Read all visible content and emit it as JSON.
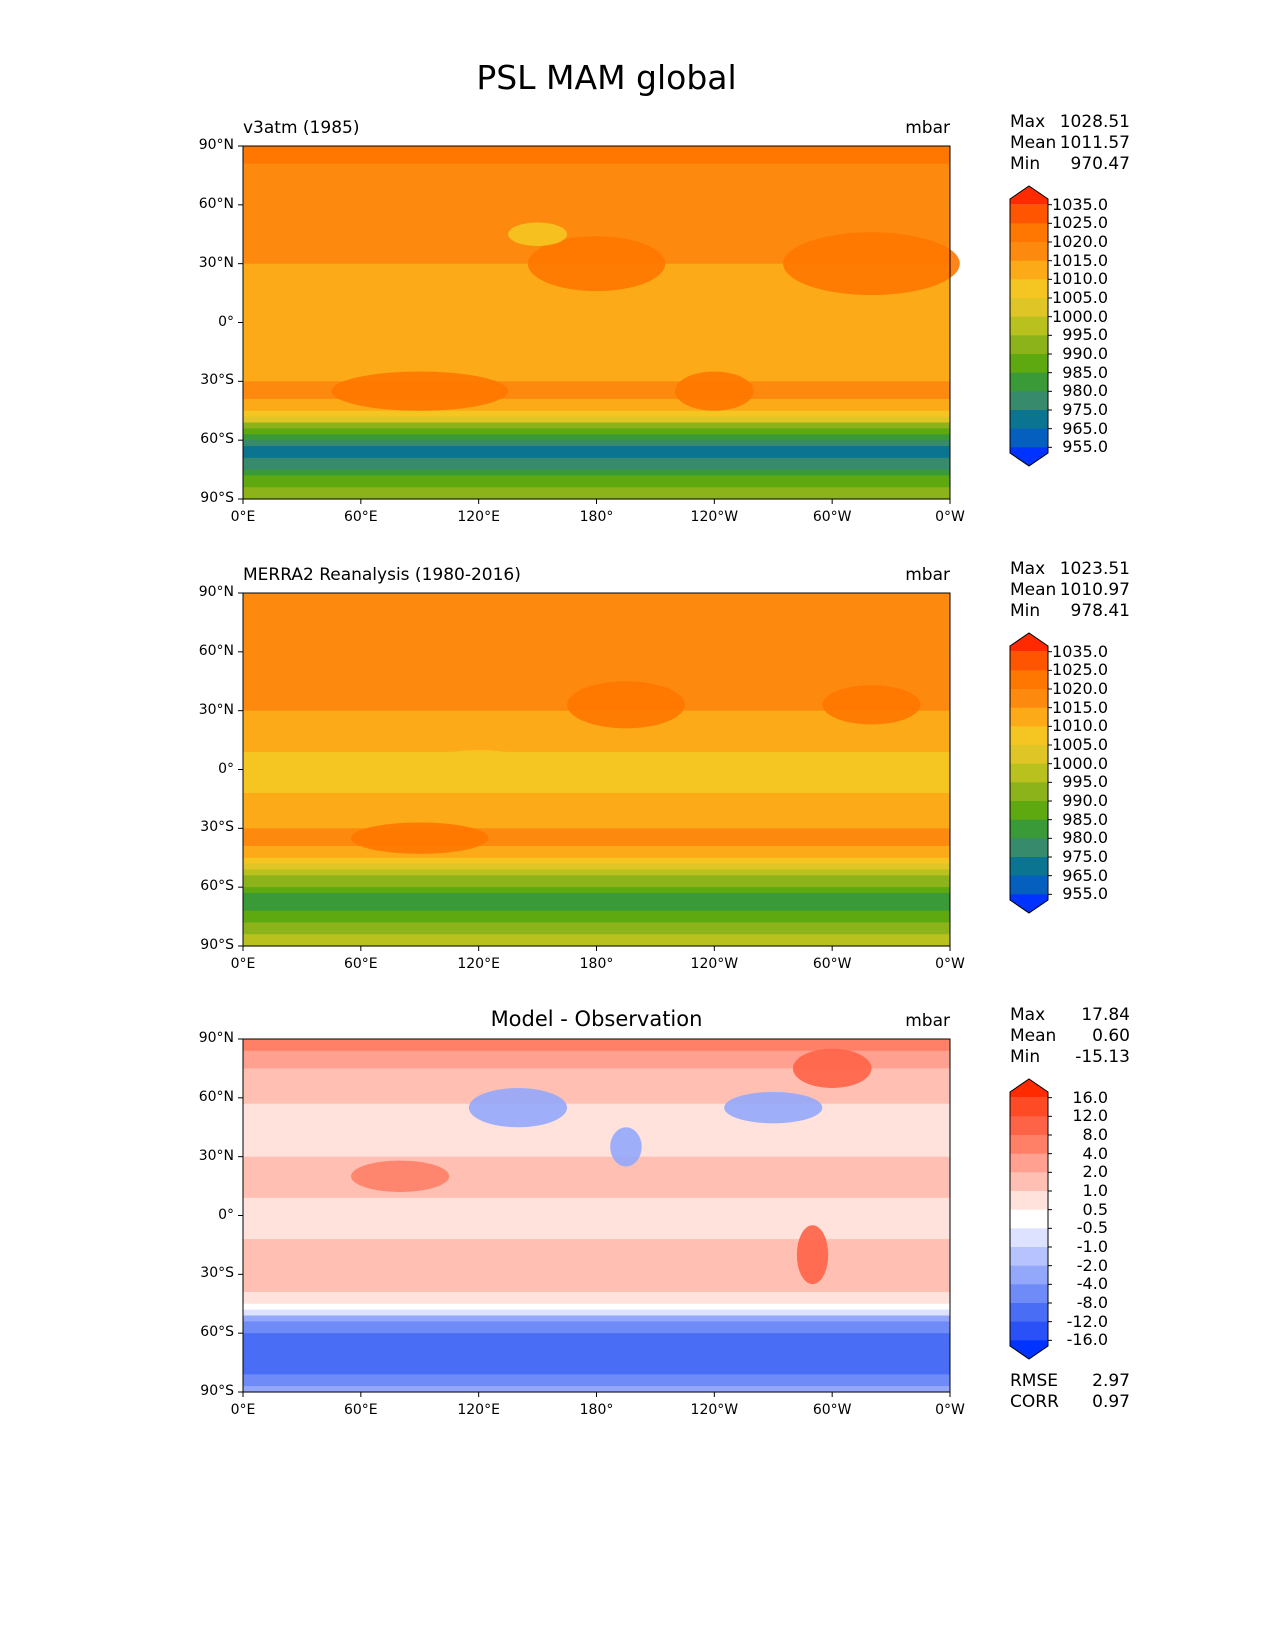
{
  "chart_data": {
    "type": "heatmap",
    "title": "PSL MAM global",
    "xticks": [
      "0°E",
      "60°E",
      "120°E",
      "180°",
      "120°W",
      "60°W",
      "0°W"
    ],
    "yticks": [
      "90°N",
      "60°N",
      "30°N",
      "0°",
      "30°S",
      "60°S",
      "90°S"
    ],
    "panels": [
      {
        "left_title": "v3atm (1985)",
        "center_title": "",
        "units": "mbar",
        "stats": [
          {
            "label": "Max",
            "value": "1028.51"
          },
          {
            "label": "Mean",
            "value": "1011.57"
          },
          {
            "label": "Min",
            "value": "970.47"
          }
        ],
        "levels": [
          "1035.0",
          "1025.0",
          "1020.0",
          "1015.0",
          "1010.0",
          "1005.0",
          "1000.0",
          "995.0",
          "990.0",
          "985.0",
          "980.0",
          "975.0",
          "965.0",
          "955.0"
        ],
        "colors": [
          "#ff2a00",
          "#ff5500",
          "#ff7700",
          "#fd8a0e",
          "#fcaa17",
          "#f5c521",
          "#dfc526",
          "#b8c11e",
          "#8cb31a",
          "#5ea910",
          "#3b9a38",
          "#388a6c",
          "#0b7490",
          "#055fbf",
          "#0033ff"
        ],
        "lat_profile": [
          {
            "lat": 90,
            "c": 2
          },
          {
            "lat": 75,
            "c": 3
          },
          {
            "lat": 45,
            "c": 3
          },
          {
            "lat": 20,
            "c": 4
          },
          {
            "lat": 0,
            "c": 4
          },
          {
            "lat": -20,
            "c": 4
          },
          {
            "lat": -35,
            "c": 3
          },
          {
            "lat": -45,
            "c": 5
          },
          {
            "lat": -52,
            "c": 8
          },
          {
            "lat": -60,
            "c": 11
          },
          {
            "lat": -66,
            "c": 12
          },
          {
            "lat": -75,
            "c": 10
          },
          {
            "lat": -85,
            "c": 8
          },
          {
            "lat": -90,
            "c": 7
          }
        ],
        "extra": []
      },
      {
        "left_title": "MERRA2 Reanalysis (1980-2016)",
        "center_title": "",
        "units": "mbar",
        "stats": [
          {
            "label": "Max",
            "value": "1023.51"
          },
          {
            "label": "Mean",
            "value": "1010.97"
          },
          {
            "label": "Min",
            "value": "978.41"
          }
        ],
        "levels": [
          "1035.0",
          "1025.0",
          "1020.0",
          "1015.0",
          "1010.0",
          "1005.0",
          "1000.0",
          "995.0",
          "990.0",
          "985.0",
          "980.0",
          "975.0",
          "965.0",
          "955.0"
        ],
        "colors": [
          "#ff2a00",
          "#ff5500",
          "#ff7700",
          "#fd8a0e",
          "#fcaa17",
          "#f5c521",
          "#dfc526",
          "#b8c11e",
          "#8cb31a",
          "#5ea910",
          "#3b9a38",
          "#388a6c",
          "#0b7490",
          "#055fbf",
          "#0033ff"
        ],
        "lat_profile": [
          {
            "lat": 90,
            "c": 3
          },
          {
            "lat": 60,
            "c": 3
          },
          {
            "lat": 40,
            "c": 3
          },
          {
            "lat": 20,
            "c": 4
          },
          {
            "lat": 0,
            "c": 5
          },
          {
            "lat": -20,
            "c": 4
          },
          {
            "lat": -35,
            "c": 3
          },
          {
            "lat": -45,
            "c": 5
          },
          {
            "lat": -52,
            "c": 7
          },
          {
            "lat": -60,
            "c": 9
          },
          {
            "lat": -66,
            "c": 10
          },
          {
            "lat": -75,
            "c": 9
          },
          {
            "lat": -85,
            "c": 7
          },
          {
            "lat": -90,
            "c": 6
          }
        ]
      },
      {
        "left_title": "",
        "center_title": "Model - Observation",
        "units": "mbar",
        "stats": [
          {
            "label": "Max",
            "value": "17.84"
          },
          {
            "label": "Mean",
            "value": "0.60"
          },
          {
            "label": "Min",
            "value": "-15.13"
          }
        ],
        "levels": [
          "16.0",
          "12.0",
          "8.0",
          "4.0",
          "2.0",
          "1.0",
          "0.5",
          "-0.5",
          "-1.0",
          "-2.0",
          "-4.0",
          "-8.0",
          "-12.0",
          "-16.0"
        ],
        "colors": [
          "#ff2a00",
          "#ff4a26",
          "#ff6347",
          "#ff8066",
          "#ffa090",
          "#ffc0b3",
          "#ffe2dc",
          "#ffffff",
          "#dce2ff",
          "#b7c3ff",
          "#94a8fb",
          "#6f8bf7",
          "#4a6df5",
          "#2a50f8",
          "#0033ff"
        ],
        "lat_profile": [
          {
            "lat": 90,
            "c": 3
          },
          {
            "lat": 70,
            "c": 5
          },
          {
            "lat": 45,
            "c": 6
          },
          {
            "lat": 20,
            "c": 5
          },
          {
            "lat": 0,
            "c": 6
          },
          {
            "lat": -20,
            "c": 5
          },
          {
            "lat": -35,
            "c": 5
          },
          {
            "lat": -45,
            "c": 7
          },
          {
            "lat": -52,
            "c": 10
          },
          {
            "lat": -60,
            "c": 12
          },
          {
            "lat": -75,
            "c": 12
          },
          {
            "lat": -85,
            "c": 11
          },
          {
            "lat": -90,
            "c": 9
          }
        ],
        "metrics": [
          {
            "label": "RMSE",
            "value": "2.97"
          },
          {
            "label": "CORR",
            "value": "0.97"
          }
        ]
      }
    ]
  }
}
